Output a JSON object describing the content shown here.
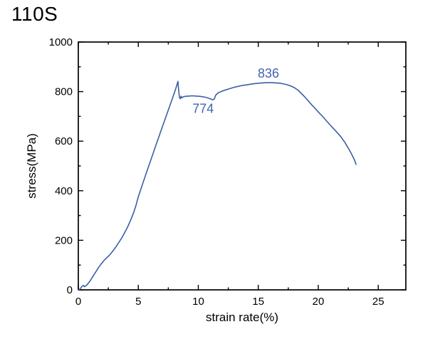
{
  "title": "110S",
  "colors": {
    "background": "#FFFFFF",
    "axis": "#000000",
    "tick_label": "#000000",
    "line": "#3B5FA6",
    "annotation": "#4164AF"
  },
  "chart_data": {
    "type": "line",
    "title": "110S",
    "xlabel": "strain rate(%)",
    "ylabel": "stress(MPa)",
    "xlim": [
      0,
      27.3
    ],
    "ylim": [
      0,
      1000
    ],
    "xticks": [
      0,
      5,
      10,
      15,
      20,
      25
    ],
    "yticks": [
      0,
      200,
      400,
      600,
      800,
      1000
    ],
    "x_minor_step": 2.5,
    "y_minor_step": 100,
    "grid": false,
    "legend": false,
    "frame": "box-with-inward-ticks",
    "annotations": [
      {
        "text": "836",
        "x": 15.85,
        "y": 874
      },
      {
        "text": "774",
        "x": 10.4,
        "y": 731
      }
    ],
    "series": [
      {
        "name": "stress-strain",
        "color": "#3B5FA6",
        "points": [
          [
            0,
            0
          ],
          [
            0.1,
            2
          ],
          [
            0.2,
            7
          ],
          [
            0.3,
            14
          ],
          [
            0.42,
            18
          ],
          [
            0.52,
            13
          ],
          [
            0.65,
            17
          ],
          [
            0.8,
            25
          ],
          [
            0.95,
            34
          ],
          [
            1.1,
            45
          ],
          [
            1.3,
            61
          ],
          [
            1.5,
            76
          ],
          [
            1.7,
            91
          ],
          [
            1.9,
            104
          ],
          [
            2.15,
            119
          ],
          [
            2.4,
            131
          ],
          [
            2.6,
            140
          ],
          [
            2.85,
            155
          ],
          [
            3.1,
            171
          ],
          [
            3.35,
            189
          ],
          [
            3.6,
            208
          ],
          [
            3.85,
            230
          ],
          [
            4.1,
            253
          ],
          [
            4.35,
            280
          ],
          [
            4.6,
            310
          ],
          [
            4.8,
            340
          ],
          [
            5.0,
            375
          ],
          [
            5.25,
            412
          ],
          [
            5.5,
            448
          ],
          [
            5.75,
            483
          ],
          [
            6.0,
            518
          ],
          [
            6.25,
            553
          ],
          [
            6.5,
            588
          ],
          [
            6.75,
            622
          ],
          [
            7.0,
            657
          ],
          [
            7.25,
            691
          ],
          [
            7.5,
            726
          ],
          [
            7.75,
            760
          ],
          [
            8.0,
            794
          ],
          [
            8.15,
            816
          ],
          [
            8.3,
            841
          ],
          [
            8.37,
            803
          ],
          [
            8.43,
            777
          ],
          [
            8.5,
            771
          ],
          [
            8.56,
            781
          ],
          [
            8.63,
            775
          ],
          [
            8.75,
            779
          ],
          [
            8.95,
            781
          ],
          [
            9.2,
            782
          ],
          [
            9.5,
            783
          ],
          [
            9.8,
            782
          ],
          [
            10.1,
            781
          ],
          [
            10.4,
            779
          ],
          [
            10.7,
            776
          ],
          [
            11.0,
            771
          ],
          [
            11.2,
            767
          ],
          [
            11.33,
            770
          ],
          [
            11.45,
            785
          ],
          [
            11.6,
            793
          ],
          [
            11.8,
            798
          ],
          [
            12.1,
            804
          ],
          [
            12.5,
            810
          ],
          [
            12.9,
            816
          ],
          [
            13.3,
            821
          ],
          [
            13.7,
            825
          ],
          [
            14.1,
            828
          ],
          [
            14.5,
            831
          ],
          [
            14.9,
            833
          ],
          [
            15.3,
            835
          ],
          [
            15.7,
            836
          ],
          [
            16.1,
            836
          ],
          [
            16.5,
            835
          ],
          [
            16.9,
            833
          ],
          [
            17.3,
            829
          ],
          [
            17.7,
            823
          ],
          [
            18.0,
            816
          ],
          [
            18.3,
            806
          ],
          [
            18.6,
            792
          ],
          [
            18.9,
            777
          ],
          [
            19.2,
            761
          ],
          [
            19.5,
            744
          ],
          [
            19.8,
            729
          ],
          [
            20.1,
            713
          ],
          [
            20.4,
            698
          ],
          [
            20.7,
            681
          ],
          [
            21.0,
            665
          ],
          [
            21.3,
            649
          ],
          [
            21.6,
            633
          ],
          [
            21.9,
            617
          ],
          [
            22.2,
            596
          ],
          [
            22.5,
            572
          ],
          [
            22.7,
            555
          ],
          [
            22.9,
            536
          ],
          [
            23.05,
            520
          ],
          [
            23.15,
            506
          ]
        ]
      }
    ]
  }
}
